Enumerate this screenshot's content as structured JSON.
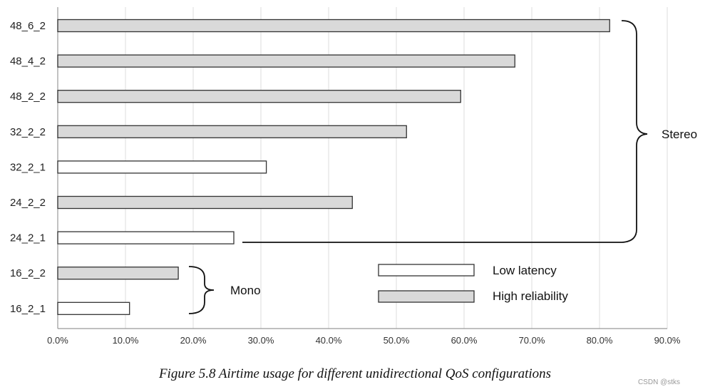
{
  "chart_data": {
    "type": "bar",
    "orientation": "horizontal",
    "title": "",
    "xlabel": "",
    "ylabel": "",
    "xlim": [
      0,
      90
    ],
    "x_tick_labels": [
      "0.0%",
      "10.0%",
      "20.0%",
      "30.0%",
      "40.0%",
      "50.0%",
      "60.0%",
      "70.0%",
      "80.0%",
      "90.0%"
    ],
    "x_ticks": [
      0,
      10,
      20,
      30,
      40,
      50,
      60,
      70,
      80,
      90
    ],
    "categories": [
      "48_6_2",
      "48_4_2",
      "48_2_2",
      "32_2_2",
      "32_2_1",
      "24_2_2",
      "24_2_1",
      "16_2_2",
      "16_2_1"
    ],
    "values": [
      81.5,
      67.5,
      59.5,
      51.5,
      30.8,
      43.5,
      26.0,
      17.8,
      10.6
    ],
    "series_type": [
      "high",
      "high",
      "high",
      "high",
      "low",
      "high",
      "low",
      "high",
      "low"
    ],
    "grid": true,
    "legend": {
      "position": "bottom-right",
      "entries": [
        {
          "key": "low",
          "label": "Low latency",
          "color": "#ffffff"
        },
        {
          "key": "high",
          "label": "High reliability",
          "color": "#d9d9d9"
        }
      ]
    },
    "annotations": {
      "stereo": "Stereo",
      "mono": "Mono"
    }
  },
  "caption": "Figure 5.8  Airtime usage for different unidirectional QoS configurations",
  "watermark": "CSDN @stks",
  "colors": {
    "high": "#d9d9d9",
    "low": "#ffffff",
    "stroke": "#333333",
    "grid": "#dcdcdc",
    "axis": "#999999"
  }
}
